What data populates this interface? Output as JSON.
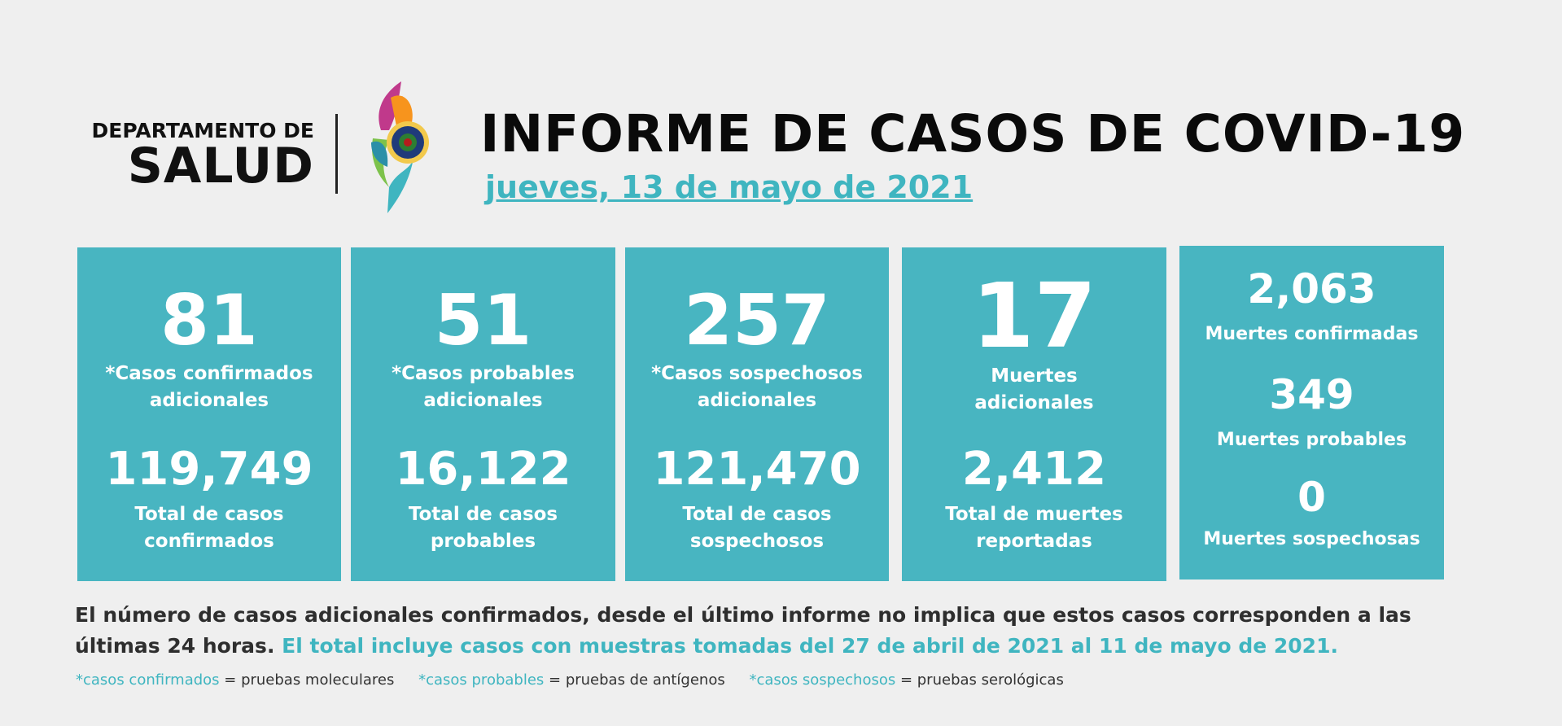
{
  "header": {
    "dept_line1": "DEPARTAMENTO DE",
    "dept_line2": "SALUD",
    "title": "INFORME DE CASOS DE COVID-19",
    "date": "jueves, 13 de mayo de 2021"
  },
  "cards": [
    {
      "number": "81",
      "label1": "*Casos confirmados",
      "label2": "adicionales",
      "total": "119,749",
      "total_label1": "Total de casos",
      "total_label2": "confirmados"
    },
    {
      "number": "51",
      "label1": "*Casos probables",
      "label2": "adicionales",
      "total": "16,122",
      "total_label1": "Total de casos",
      "total_label2": "probables"
    },
    {
      "number": "257",
      "label1": "*Casos sospechosos",
      "label2": "adicionales",
      "total": "121,470",
      "total_label1": "Total de casos",
      "total_label2": "sospechosos"
    },
    {
      "number": "17",
      "label1": "Muertes",
      "label2": "adicionales",
      "total": "2,412",
      "total_label1": "Total de muertes",
      "total_label2": "reportadas"
    }
  ],
  "deaths": [
    {
      "number": "2,063",
      "label": "Muertes confirmadas"
    },
    {
      "number": "349",
      "label": "Muertes probables"
    },
    {
      "number": "0",
      "label": "Muertes sospechosas"
    }
  ],
  "note": {
    "text1": "El número de casos adicionales confirmados, desde el último informe no implica que estos casos corresponden a las últimas 24 horas. ",
    "text2": "El total incluye casos con muestras tomadas del 27 de abril de 2021 al 11 de mayo de 2021."
  },
  "legend": [
    {
      "term": "*casos confirmados",
      "def": " = pruebas moleculares"
    },
    {
      "term": "*casos probables",
      "def": " = pruebas de antígenos"
    },
    {
      "term": "*casos sospechosos",
      "def": " = pruebas serológicas"
    }
  ],
  "colors": {
    "teal": "#48b5c1",
    "accent_text": "#3fb5c0",
    "background": "#efefef"
  }
}
